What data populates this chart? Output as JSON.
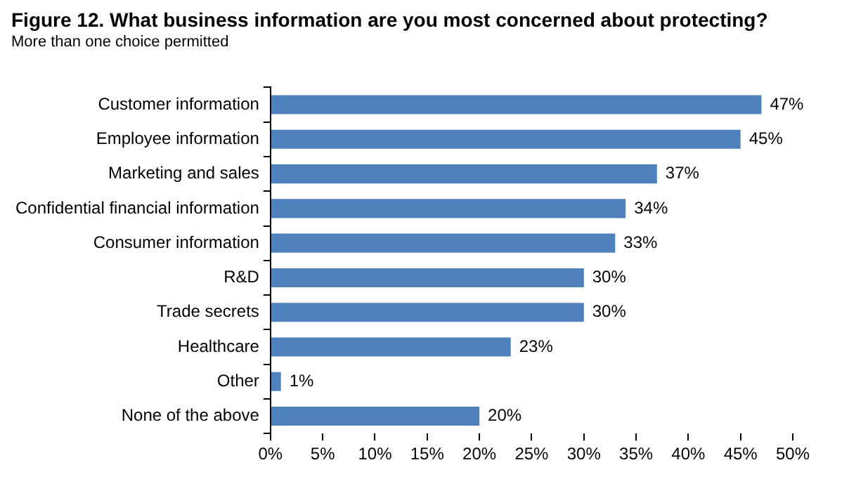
{
  "chart_data": {
    "type": "bar",
    "orientation": "horizontal",
    "title": "Figure 12. What business information are you most concerned about protecting?",
    "subtitle": "More than one choice permitted",
    "categories": [
      "Customer information",
      "Employee information",
      "Marketing and sales",
      "Confidential financial information",
      "Consumer information",
      "R&D",
      "Trade secrets",
      "Healthcare",
      "Other",
      "None of the above"
    ],
    "values": [
      47,
      45,
      37,
      34,
      33,
      30,
      30,
      23,
      1,
      20
    ],
    "value_labels": [
      "47%",
      "45%",
      "37%",
      "34%",
      "33%",
      "30%",
      "30%",
      "23%",
      "1%",
      "20%"
    ],
    "color": "#4f81bd",
    "xlim": [
      0,
      50
    ],
    "xticks": [
      {
        "value": 0,
        "label": "0%"
      },
      {
        "value": 5,
        "label": "5%"
      },
      {
        "value": 10,
        "label": "10%"
      },
      {
        "value": 15,
        "label": "15%"
      },
      {
        "value": 20,
        "label": "20%"
      },
      {
        "value": 25,
        "label": "25%"
      },
      {
        "value": 30,
        "label": "30%"
      },
      {
        "value": 35,
        "label": "35%"
      },
      {
        "value": 40,
        "label": "40%"
      },
      {
        "value": 45,
        "label": "45%"
      },
      {
        "value": 50,
        "label": "50%"
      }
    ],
    "grid": false,
    "legend": false
  }
}
